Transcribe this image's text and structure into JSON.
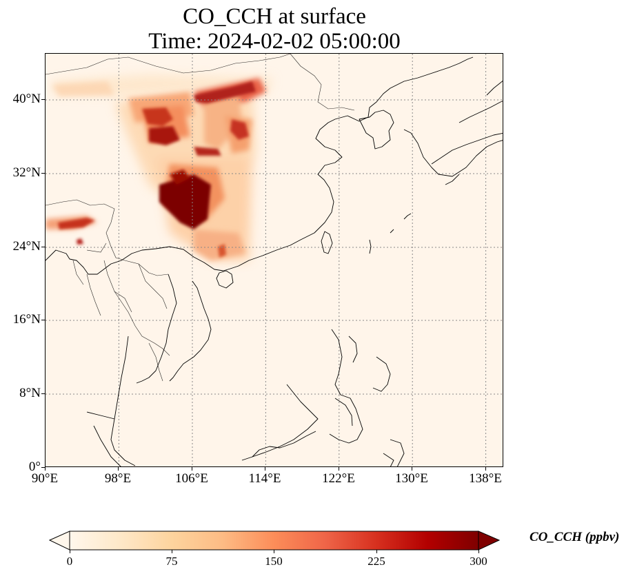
{
  "title": {
    "line1": "CO_CCH at surface",
    "line2": "Time: 2024-02-02 05:00:00"
  },
  "map": {
    "variable": "CO_CCH",
    "level": "surface",
    "projection": "PlateCarree",
    "lon_range": [
      90,
      140
    ],
    "lat_range": [
      0,
      45
    ],
    "gridlines": true,
    "gridline_style": "dotted",
    "x_ticks": [
      "90°E",
      "98°E",
      "106°E",
      "114°E",
      "122°E",
      "130°E",
      "138°E"
    ],
    "y_ticks": [
      "0°",
      "8°N",
      "16°N",
      "24°N",
      "32°N",
      "40°N"
    ],
    "colormap": "OrRd",
    "plumes": [
      {
        "region": "Sichuan Basin",
        "level": "max"
      },
      {
        "region": "North China",
        "level": "high"
      },
      {
        "region": "Central China",
        "level": "moderate"
      },
      {
        "region": "Northeast India / Bangladesh",
        "level": "high"
      }
    ]
  },
  "colorbar": {
    "label": "CO_CCH (ppbv)",
    "ticks": [
      "0",
      "75",
      "150",
      "225",
      "300"
    ],
    "range": [
      0,
      300
    ],
    "extend": "both",
    "colors": [
      "#fff7ec",
      "#fee8c8",
      "#fdd49e",
      "#fdbb84",
      "#fc8d59",
      "#ef6548",
      "#d7301f",
      "#b30000",
      "#7f0000"
    ]
  }
}
